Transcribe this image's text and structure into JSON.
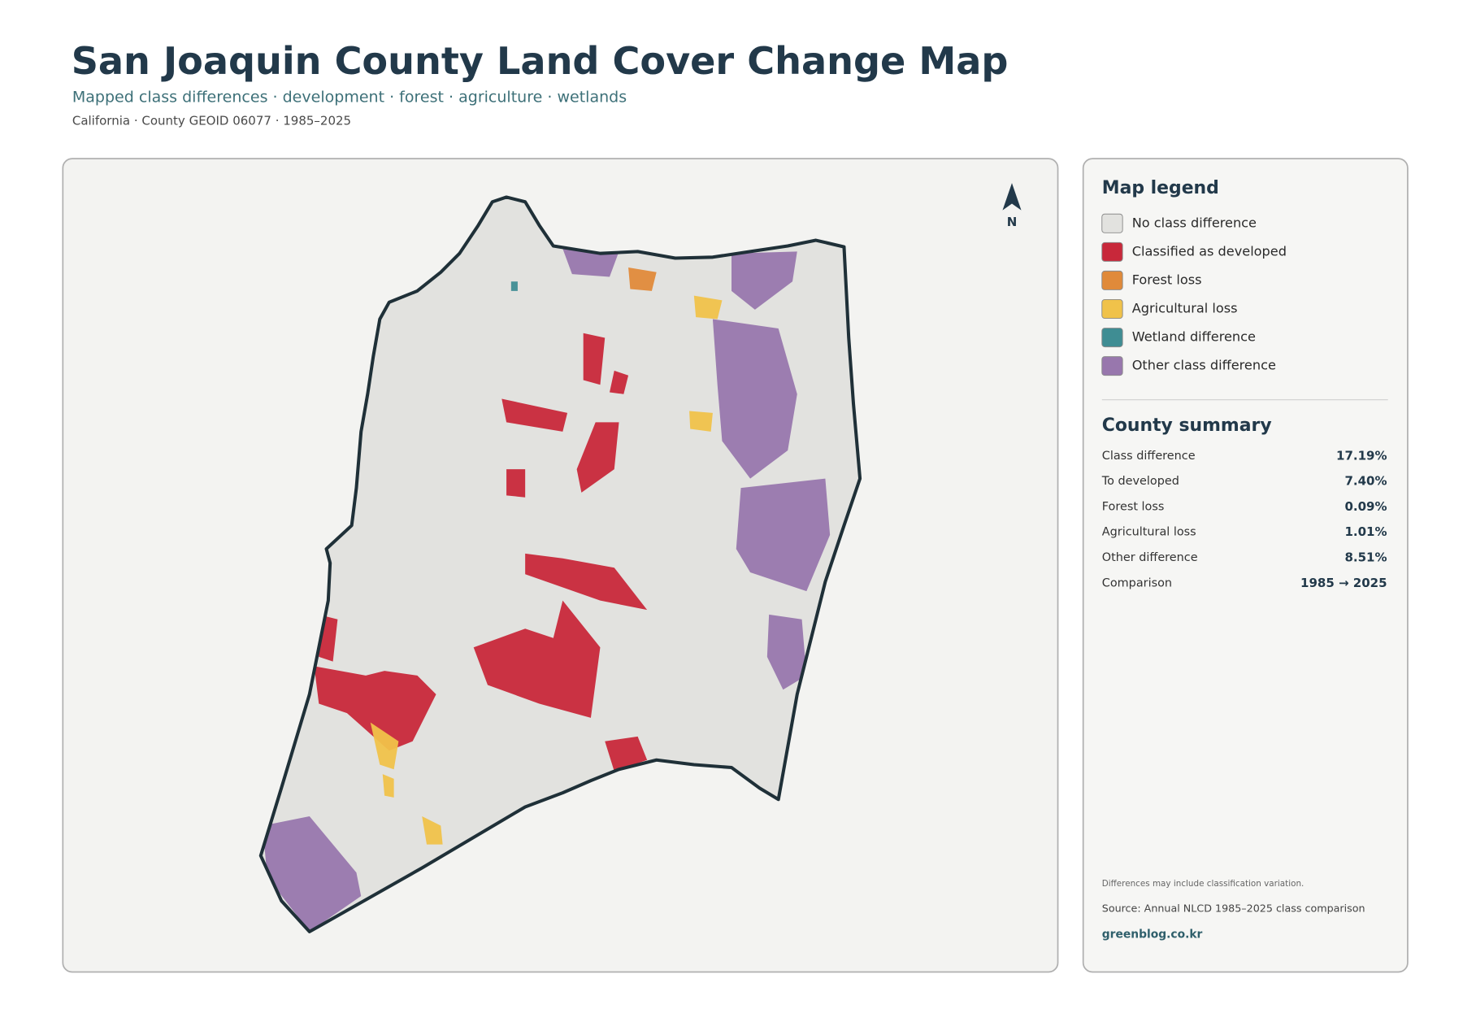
{
  "header": {
    "title": "San Joaquin County Land Cover Change Map",
    "subtitle": "Mapped class differences · development · forest · agriculture · wetlands",
    "meta": "California · County GEOID 06077 · 1985–2025"
  },
  "map": {
    "north": "N"
  },
  "legend": {
    "title": "Map legend",
    "items": [
      {
        "label": "No class difference",
        "color": "#e2e2df"
      },
      {
        "label": "Classified as developed",
        "color": "#c8283a"
      },
      {
        "label": "Forest loss",
        "color": "#e08a3a"
      },
      {
        "label": "Agricultural loss",
        "color": "#f0c24a"
      },
      {
        "label": "Wetland difference",
        "color": "#3f8d93"
      },
      {
        "label": "Other class difference",
        "color": "#9877ad"
      }
    ]
  },
  "summary": {
    "title": "County summary",
    "rows": [
      [
        "Class difference",
        "17.19%"
      ],
      [
        "To developed",
        "7.40%"
      ],
      [
        "Forest loss",
        "0.09%"
      ],
      [
        "Agricultural loss",
        "1.01%"
      ],
      [
        "Other difference",
        "8.51%"
      ],
      [
        "Comparison",
        "1985 → 2025"
      ]
    ]
  },
  "footer": {
    "note": "Differences may include classification variation.",
    "source": "Source: Annual NLCD 1985–2025 class comparison",
    "site": "greenblog.co.kr"
  }
}
